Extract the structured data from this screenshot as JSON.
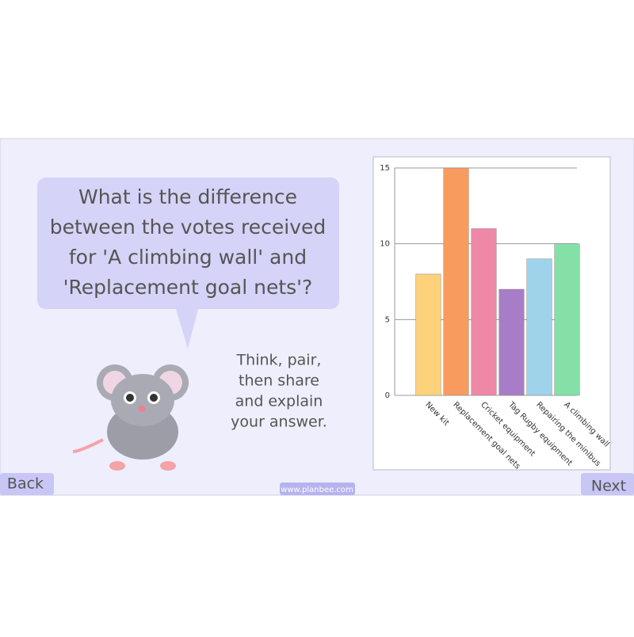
{
  "question": [
    "What is the difference",
    "between the votes received",
    "for 'A climbing wall' and",
    "'Replacement goal nets'?"
  ],
  "prompt": [
    "Think, pair,",
    "then share",
    "and explain",
    "your answer."
  ],
  "buttons": {
    "back": "Back",
    "next": "Next"
  },
  "footer": "www.planbee.com",
  "chart_data": {
    "type": "bar",
    "categories": [
      "New kit",
      "Replacement goal nets",
      "Cricket equipment",
      "Tag Rugby equipment",
      "Repairing the minibus",
      "A climbing wall"
    ],
    "values": [
      8,
      15,
      11,
      7,
      9,
      10
    ],
    "colors": [
      "#fdd27a",
      "#f79b5e",
      "#ef87a6",
      "#a87dc8",
      "#9fd3ec",
      "#84e0a7"
    ],
    "ylim": [
      0,
      15
    ],
    "yticks": [
      0,
      5,
      10,
      15
    ],
    "grid": true
  }
}
